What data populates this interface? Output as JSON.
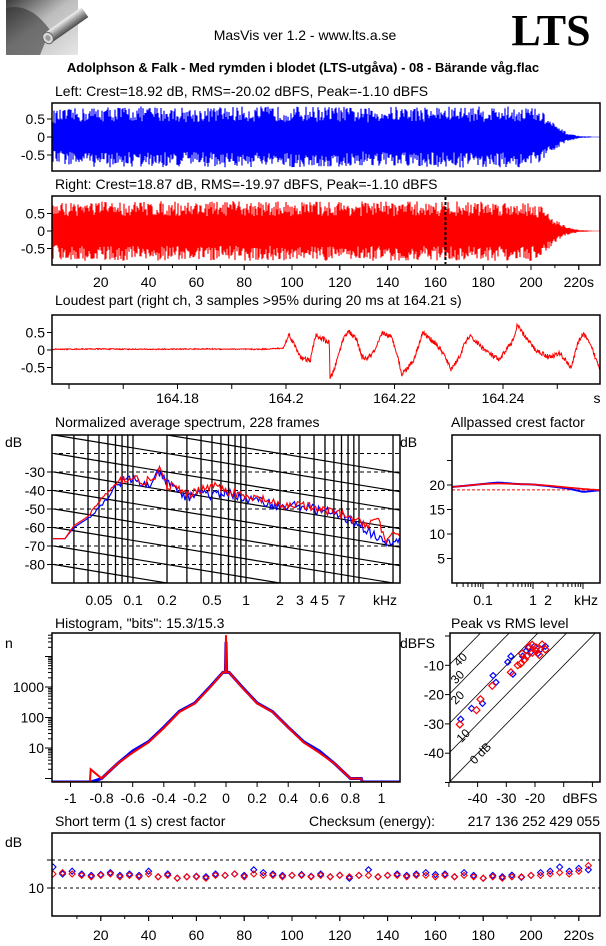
{
  "header": {
    "app_title": "MasVis ver 1.2 - www.lts.a.se",
    "brand": "LTS",
    "file_title": "Adolphson & Falk - Med rymden i blodet (LTS-utgåva) - 08 - Bärande våg.flac"
  },
  "colors": {
    "left": "#0000ff",
    "right": "#ff0000",
    "axes": "#000000",
    "background": "#ffffff"
  },
  "chart_data": [
    {
      "id": "left_waveform",
      "type": "area",
      "title": "Left: Crest=18.92 dB, RMS=-20.02 dBFS, Peak=-1.10 dBFS",
      "yticks": [
        0.5,
        0,
        -0.5
      ],
      "ytick_labels": [
        "0.5",
        "0",
        "-0.5"
      ],
      "envelope": {
        "t_s": [
          0,
          10,
          20,
          30,
          40,
          50,
          60,
          70,
          80,
          90,
          100,
          110,
          120,
          130,
          140,
          150,
          160,
          170,
          180,
          190,
          200,
          205,
          210,
          215,
          220,
          226
        ],
        "peak_amplitude": [
          0.75,
          0.8,
          0.85,
          0.85,
          0.85,
          0.85,
          0.8,
          0.85,
          0.85,
          0.85,
          0.85,
          0.85,
          0.85,
          0.8,
          0.85,
          0.85,
          0.85,
          0.85,
          0.85,
          0.85,
          0.85,
          0.7,
          0.35,
          0.12,
          0.03,
          0.01
        ]
      }
    },
    {
      "id": "right_waveform",
      "type": "area",
      "title": "Right: Crest=18.87 dB, RMS=-19.97 dBFS, Peak=-1.10 dBFS",
      "yticks": [
        0.5,
        0,
        -0.5
      ],
      "ytick_labels": [
        "0.5",
        "0",
        "-0.5"
      ],
      "marker_time_s": 164.21,
      "envelope": {
        "t_s": [
          0,
          10,
          20,
          30,
          40,
          50,
          60,
          70,
          80,
          90,
          100,
          110,
          120,
          130,
          140,
          150,
          160,
          170,
          180,
          190,
          200,
          205,
          210,
          215,
          220,
          226
        ],
        "peak_amplitude": [
          0.8,
          0.85,
          0.85,
          0.85,
          0.85,
          0.85,
          0.85,
          0.85,
          0.85,
          0.85,
          0.85,
          0.85,
          0.85,
          0.85,
          0.85,
          0.85,
          0.85,
          0.85,
          0.85,
          0.85,
          0.85,
          0.7,
          0.35,
          0.12,
          0.03,
          0.01
        ]
      },
      "xticks": [
        20,
        40,
        60,
        80,
        100,
        120,
        140,
        160,
        180,
        200,
        220
      ],
      "xtick_labels": [
        "20",
        "40",
        "60",
        "80",
        "100",
        "120",
        "140",
        "160",
        "180",
        "200",
        "220s"
      ],
      "xlim": [
        0,
        228
      ]
    },
    {
      "id": "loudest_part",
      "type": "line",
      "title": "Loudest part (right ch, 3 samples >95% during 20 ms at 164.21 s)",
      "yticks": [
        0.5,
        0,
        -0.5
      ],
      "ytick_labels": [
        "0.5",
        "0",
        "-0.5"
      ],
      "xticks": [
        164.18,
        164.2,
        164.22,
        164.24
      ],
      "xtick_labels": [
        "164.18",
        "164.2",
        "164.22",
        "164.24"
      ],
      "x_unit": "s",
      "samples": {
        "t_s": [
          164.157,
          164.165,
          164.175,
          164.185,
          164.195,
          164.1995,
          164.2006,
          164.202,
          164.203,
          164.2045,
          164.2054,
          164.207,
          164.208,
          164.2081,
          164.209,
          164.2105,
          164.2114,
          164.213,
          164.214,
          164.215,
          164.2165,
          164.2178,
          164.2195,
          164.2205,
          164.2213,
          164.2235,
          164.2252,
          164.2275,
          164.229,
          164.2304,
          164.232,
          164.233,
          164.2338,
          164.236,
          164.2375,
          164.2394,
          164.2405,
          164.242,
          164.2426,
          164.2445,
          164.246,
          164.2485,
          164.2505,
          164.2526,
          164.254,
          164.255,
          164.2565,
          164.258
        ],
        "amplitude": [
          0.02,
          0.03,
          0.02,
          0.03,
          0.02,
          0.05,
          0.45,
          0.0,
          -0.25,
          -0.3,
          0.4,
          0.3,
          0.2,
          -0.85,
          -0.5,
          0.3,
          0.55,
          0.3,
          -0.2,
          -0.25,
          0.0,
          0.5,
          0.35,
          -0.1,
          -0.7,
          -0.3,
          0.5,
          0.2,
          -0.1,
          -0.55,
          -0.2,
          0.2,
          0.4,
          0.1,
          -0.1,
          -0.3,
          0.0,
          0.3,
          0.7,
          0.3,
          0.0,
          -0.2,
          -0.1,
          -0.5,
          0.3,
          0.45,
          0.0,
          -0.6
        ]
      }
    },
    {
      "id": "spectrum",
      "type": "line",
      "title": "Normalized average spectrum, 228 frames",
      "ylabel": "dB",
      "ylim": [
        -90,
        -10
      ],
      "yticks": [
        -30,
        -40,
        -50,
        -60,
        -70,
        -80
      ],
      "ytick_labels": [
        "-30",
        "-40",
        "-50",
        "-60",
        "-70",
        "-80"
      ],
      "xscale": "log",
      "x_unit": "kHz",
      "xticks": [
        0.05,
        0.1,
        0.2,
        0.5,
        1,
        2,
        3,
        4,
        5,
        7
      ],
      "xtick_labels": [
        "0.05",
        "0.1",
        "0.2",
        "0.5",
        "1",
        "2",
        "3",
        "4",
        "5",
        "7"
      ],
      "grid": true,
      "freq_khz": [
        0.025,
        0.03,
        0.04,
        0.05,
        0.06,
        0.07,
        0.08,
        0.1,
        0.12,
        0.15,
        0.17,
        0.2,
        0.25,
        0.3,
        0.4,
        0.5,
        0.7,
        1,
        1.5,
        2,
        3,
        4,
        5,
        7,
        10,
        12,
        15,
        17,
        20,
        23
      ],
      "series": [
        {
          "channel": "left",
          "values": [
            -66,
            -60,
            -55,
            -49,
            -44,
            -37,
            -35,
            -34,
            -37,
            -36,
            -30,
            -36,
            -40,
            -44,
            -40,
            -43,
            -41,
            -45,
            -46,
            -49,
            -48,
            -50,
            -51,
            -54,
            -58,
            -62,
            -66,
            -69,
            -68,
            -66
          ]
        },
        {
          "channel": "right",
          "values": [
            -66,
            -59,
            -54,
            -46,
            -41,
            -37,
            -34,
            -33,
            -35,
            -35,
            -29,
            -37,
            -39,
            -43,
            -39,
            -37,
            -40,
            -44,
            -45,
            -49,
            -47,
            -50,
            -51,
            -53,
            -57,
            -58,
            -55,
            -68,
            -65,
            -63
          ]
        }
      ]
    },
    {
      "id": "allpassed_crest",
      "type": "line",
      "title": "Allpassed crest factor",
      "ylabel": "dB",
      "ylim": [
        0,
        30
      ],
      "yticks": [
        20,
        15,
        10,
        5
      ],
      "ytick_labels": [
        "20",
        "15",
        "10",
        "5"
      ],
      "xscale": "log",
      "x_unit": "kHz",
      "xticks": [
        0.1,
        1,
        2
      ],
      "xtick_labels": [
        "0.1",
        "1",
        "2"
      ],
      "reference_db": 19,
      "freq_khz": [
        0.024,
        0.05,
        0.1,
        0.2,
        0.5,
        1,
        2,
        5,
        10,
        20
      ],
      "series": [
        {
          "channel": "left",
          "values": [
            19.6,
            19.9,
            20.2,
            20.5,
            20.2,
            20.1,
            19.8,
            19.3,
            18.6,
            18.9
          ]
        },
        {
          "channel": "right",
          "values": [
            19.6,
            19.9,
            20.2,
            20.3,
            20.2,
            20.1,
            19.9,
            19.5,
            19.2,
            19.0
          ]
        }
      ]
    },
    {
      "id": "histogram",
      "type": "line",
      "title": "Histogram, \"bits\": 15.3/15.3",
      "ylabel": "n",
      "yscale": "log",
      "yticks": [
        1000,
        100,
        10
      ],
      "ytick_labels": [
        "1000",
        "100",
        "10"
      ],
      "xticks": [
        -1,
        -0.8,
        -0.6,
        -0.4,
        -0.2,
        0,
        0.2,
        0.4,
        0.6,
        0.8,
        1
      ],
      "xtick_labels": [
        "-1",
        "-0.8",
        "-0.6",
        "-0.4",
        "-0.2",
        "0",
        "0.2",
        "0.4",
        "0.6",
        "0.8",
        "1"
      ],
      "xlim": [
        -1.12,
        1.12
      ],
      "x": [
        -1.12,
        -0.875,
        -0.87,
        -0.8,
        -0.7,
        -0.6,
        -0.5,
        -0.4,
        -0.3,
        -0.2,
        -0.1,
        -0.02,
        -0.004,
        0,
        0.004,
        0.02,
        0.1,
        0.2,
        0.3,
        0.4,
        0.5,
        0.6,
        0.7,
        0.8,
        0.87,
        0.875,
        1.12
      ],
      "series": [
        {
          "channel": "left",
          "values": [
            0,
            0,
            0,
            1,
            3,
            8,
            16,
            48,
            160,
            300,
            1050,
            3000,
            3000,
            30000,
            3000,
            3000,
            1050,
            300,
            155,
            48,
            16,
            8,
            3,
            1,
            1,
            0,
            0
          ]
        },
        {
          "channel": "right",
          "values": [
            0,
            0,
            2,
            1,
            3,
            7,
            15,
            45,
            150,
            290,
            1000,
            3000,
            3000,
            50000,
            3000,
            3000,
            1000,
            290,
            150,
            47,
            15,
            7,
            3,
            1,
            1,
            0,
            0
          ]
        }
      ]
    },
    {
      "id": "peak_vs_rms",
      "type": "scatter",
      "title": "Peak vs RMS level",
      "ylabel": "dBFS",
      "xlabel": "dBFS",
      "xlim": [
        -50,
        0
      ],
      "ylim": [
        -50,
        0
      ],
      "yticks": [
        -10,
        -20,
        -30,
        -40
      ],
      "ytick_labels": [
        "-10",
        "-20",
        "-30",
        "-40"
      ],
      "xticks": [
        -40,
        -30,
        -20
      ],
      "xtick_labels": [
        "-40",
        "-30",
        "-20"
      ],
      "crest_lines_db": [
        0,
        10,
        20,
        30,
        40
      ],
      "crest_line_labels": [
        "0 dB",
        "10",
        "20",
        "30",
        "40"
      ],
      "series": [
        {
          "channel": "left",
          "points": [
            [
              -45.9,
              -28.4
            ],
            [
              -42.1,
              -24.7
            ],
            [
              -38.3,
              -23
            ],
            [
              -34.6,
              -13.5
            ],
            [
              -33.6,
              -15.8
            ],
            [
              -29.5,
              -8.9
            ],
            [
              -28.4,
              -6.9
            ],
            [
              -27.7,
              -13
            ],
            [
              -24.3,
              -6.9
            ],
            [
              -22.3,
              -4
            ],
            [
              -20.2,
              -3.5
            ],
            [
              -16.4,
              -3.5
            ],
            [
              -19,
              -6
            ],
            [
              -21.5,
              -5.5
            ],
            [
              -18,
              -4.5
            ],
            [
              -23,
              -5
            ]
          ]
        },
        {
          "channel": "right",
          "points": [
            [
              -46.2,
              -30.2
            ],
            [
              -40.4,
              -25.3
            ],
            [
              -39,
              -21.6
            ],
            [
              -34.9,
              -17
            ],
            [
              -28.4,
              -12.4
            ],
            [
              -25,
              -9.5
            ],
            [
              -22.9,
              -6.9
            ],
            [
              -20.9,
              -5.7
            ],
            [
              -19.5,
              -4
            ],
            [
              -17.5,
              -2.9
            ],
            [
              -16.4,
              -4.6
            ],
            [
              -22.2,
              -3.5
            ],
            [
              -19.8,
              -5
            ],
            [
              -23.6,
              -8
            ],
            [
              -21,
              -3
            ],
            [
              -18.5,
              -6.5
            ],
            [
              -24.5,
              -6
            ],
            [
              -26,
              -10
            ]
          ]
        }
      ]
    },
    {
      "id": "short_term_crest",
      "type": "scatter",
      "title": "Short term (1 s) crest factor",
      "checksum_label": "Checksum (energy):",
      "checksum_value": "217 136 252 429 055",
      "ylabel": "dB",
      "ylim": [
        0,
        30
      ],
      "yticks": [
        10
      ],
      "ytick_labels": [
        "10"
      ],
      "dashed_levels_db": [
        10,
        20
      ],
      "xticks": [
        20,
        40,
        60,
        80,
        100,
        120,
        140,
        160,
        180,
        200,
        220
      ],
      "xtick_labels": [
        "20",
        "40",
        "60",
        "80",
        "100",
        "120",
        "140",
        "160",
        "180",
        "200",
        "220s"
      ],
      "t_s": [
        0,
        4,
        8,
        12,
        16,
        20,
        24,
        28,
        32,
        36,
        40,
        44,
        48,
        52,
        56,
        60,
        64,
        68,
        72,
        76,
        80,
        84,
        88,
        92,
        96,
        100,
        104,
        108,
        112,
        116,
        120,
        124,
        128,
        132,
        136,
        140,
        144,
        148,
        152,
        156,
        160,
        164,
        168,
        172,
        176,
        180,
        184,
        188,
        192,
        196,
        200,
        204,
        208,
        212,
        216,
        220,
        224
      ],
      "series": [
        {
          "channel": "left",
          "values": [
            17.5,
            15,
            16,
            15,
            14.5,
            14.8,
            15.5,
            14.5,
            15,
            14.5,
            16,
            14,
            15,
            13.5,
            14,
            14.2,
            14,
            15,
            14.5,
            15,
            14.5,
            16.5,
            15.5,
            15,
            14.5,
            14.5,
            14.8,
            14.2,
            15,
            14,
            14.6,
            13.5,
            14.5,
            16.5,
            14,
            14.5,
            15,
            14.5,
            15,
            15.5,
            14.8,
            15,
            14,
            15.5,
            14.5,
            13.5,
            14.5,
            14,
            14.6,
            13.8,
            14.5,
            15.5,
            16,
            17.5,
            16,
            17,
            16.5
          ]
        },
        {
          "channel": "right",
          "values": [
            15,
            15.5,
            15,
            14.5,
            14,
            14.5,
            15,
            14,
            14.5,
            14,
            15,
            14,
            14.5,
            13.5,
            14,
            14,
            13.5,
            14.5,
            14.5,
            15,
            14,
            15,
            14.5,
            14.5,
            14,
            14.5,
            14.5,
            14,
            14.5,
            14,
            14.5,
            14,
            14.5,
            14.5,
            14,
            14.5,
            14.5,
            14,
            14.5,
            14.5,
            14,
            14.5,
            14,
            14.5,
            14,
            13.5,
            14,
            13.5,
            14,
            14,
            14.5,
            14.5,
            15,
            15.5,
            15,
            16,
            18
          ]
        }
      ]
    }
  ]
}
